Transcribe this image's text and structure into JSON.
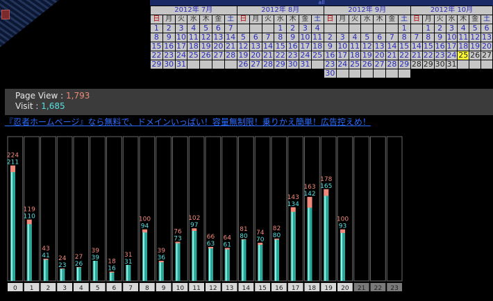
{
  "calendar": {
    "header_link": "all",
    "weekdays": [
      "日",
      "月",
      "火",
      "水",
      "木",
      "金",
      "土"
    ],
    "months": [
      {
        "title": "2012年 7月",
        "weeks": [
          [
            "1",
            "2",
            "3",
            "4",
            "5",
            "6",
            "7"
          ],
          [
            "8",
            "9",
            "10",
            "11",
            "12",
            "13",
            "14"
          ],
          [
            "15",
            "16",
            "17",
            "18",
            "19",
            "20",
            "21"
          ],
          [
            "22",
            "23",
            "24",
            "25",
            "26",
            "27",
            "28"
          ],
          [
            "29",
            "30",
            "31",
            "",
            "",
            "",
            ""
          ]
        ]
      },
      {
        "title": "2012年 8月",
        "weeks": [
          [
            "",
            "",
            "",
            "1",
            "2",
            "3",
            "4"
          ],
          [
            "5",
            "6",
            "7",
            "8",
            "9",
            "10",
            "11"
          ],
          [
            "12",
            "13",
            "14",
            "15",
            "16",
            "17",
            "18"
          ],
          [
            "19",
            "20",
            "21",
            "22",
            "23",
            "24",
            "25"
          ],
          [
            "26",
            "27",
            "28",
            "29",
            "30",
            "31",
            ""
          ]
        ]
      },
      {
        "title": "2012年 9月",
        "weeks": [
          [
            "",
            "",
            "",
            "",
            "",
            "",
            "1"
          ],
          [
            "2",
            "3",
            "4",
            "5",
            "6",
            "7",
            "8"
          ],
          [
            "9",
            "10",
            "11",
            "12",
            "13",
            "14",
            "15"
          ],
          [
            "16",
            "17",
            "18",
            "19",
            "20",
            "21",
            "22"
          ],
          [
            "23",
            "24",
            "25",
            "26",
            "27",
            "28",
            "29"
          ],
          [
            "30",
            "",
            "",
            "",
            "",
            "",
            ""
          ]
        ]
      },
      {
        "title": "2012年 10月",
        "today": "25",
        "weeks": [
          [
            "",
            "1",
            "2",
            "3",
            "4",
            "5",
            "6"
          ],
          [
            "7",
            "8",
            "9",
            "10",
            "11",
            "12",
            "13"
          ],
          [
            "14",
            "15",
            "16",
            "17",
            "18",
            "19",
            "20"
          ],
          [
            "21",
            "22",
            "23",
            "24",
            "25",
            "26",
            "27"
          ],
          [
            "28",
            "29",
            "30",
            "31",
            "",
            "",
            ""
          ]
        ]
      }
    ]
  },
  "stats": {
    "pageview_label": "Page View : ",
    "pageview_value": "1,793",
    "visit_label": "Visit : ",
    "visit_value": "1,685"
  },
  "ad": {
    "text": "『忍者ホームページ』なら無料で、ドメインいっぱい！容量無制限！乗りかえ簡単！広告控えめ！"
  },
  "chart_data": {
    "type": "bar",
    "categories": [
      "0",
      "1",
      "2",
      "3",
      "4",
      "5",
      "6",
      "7",
      "8",
      "9",
      "10",
      "11",
      "12",
      "13",
      "14",
      "15",
      "16",
      "17",
      "18",
      "19",
      "20",
      "21",
      "22",
      "23"
    ],
    "series": [
      {
        "values": [
          224,
          119,
          43,
          24,
          27,
          39,
          18,
          31,
          100,
          39,
          76,
          102,
          66,
          64,
          81,
          74,
          82,
          143,
          163,
          178,
          100,
          null,
          null,
          null
        ]
      },
      {
        "values": [
          211,
          110,
          41,
          23,
          26,
          39,
          16,
          31,
          94,
          36,
          73,
          97,
          63,
          61,
          80,
          70,
          80,
          134,
          142,
          165,
          93,
          null,
          null,
          null
        ]
      }
    ],
    "colors": {
      "pageview": "#f08a7a",
      "visit": "#58e0e0"
    },
    "ylim": [
      0,
      280
    ]
  }
}
